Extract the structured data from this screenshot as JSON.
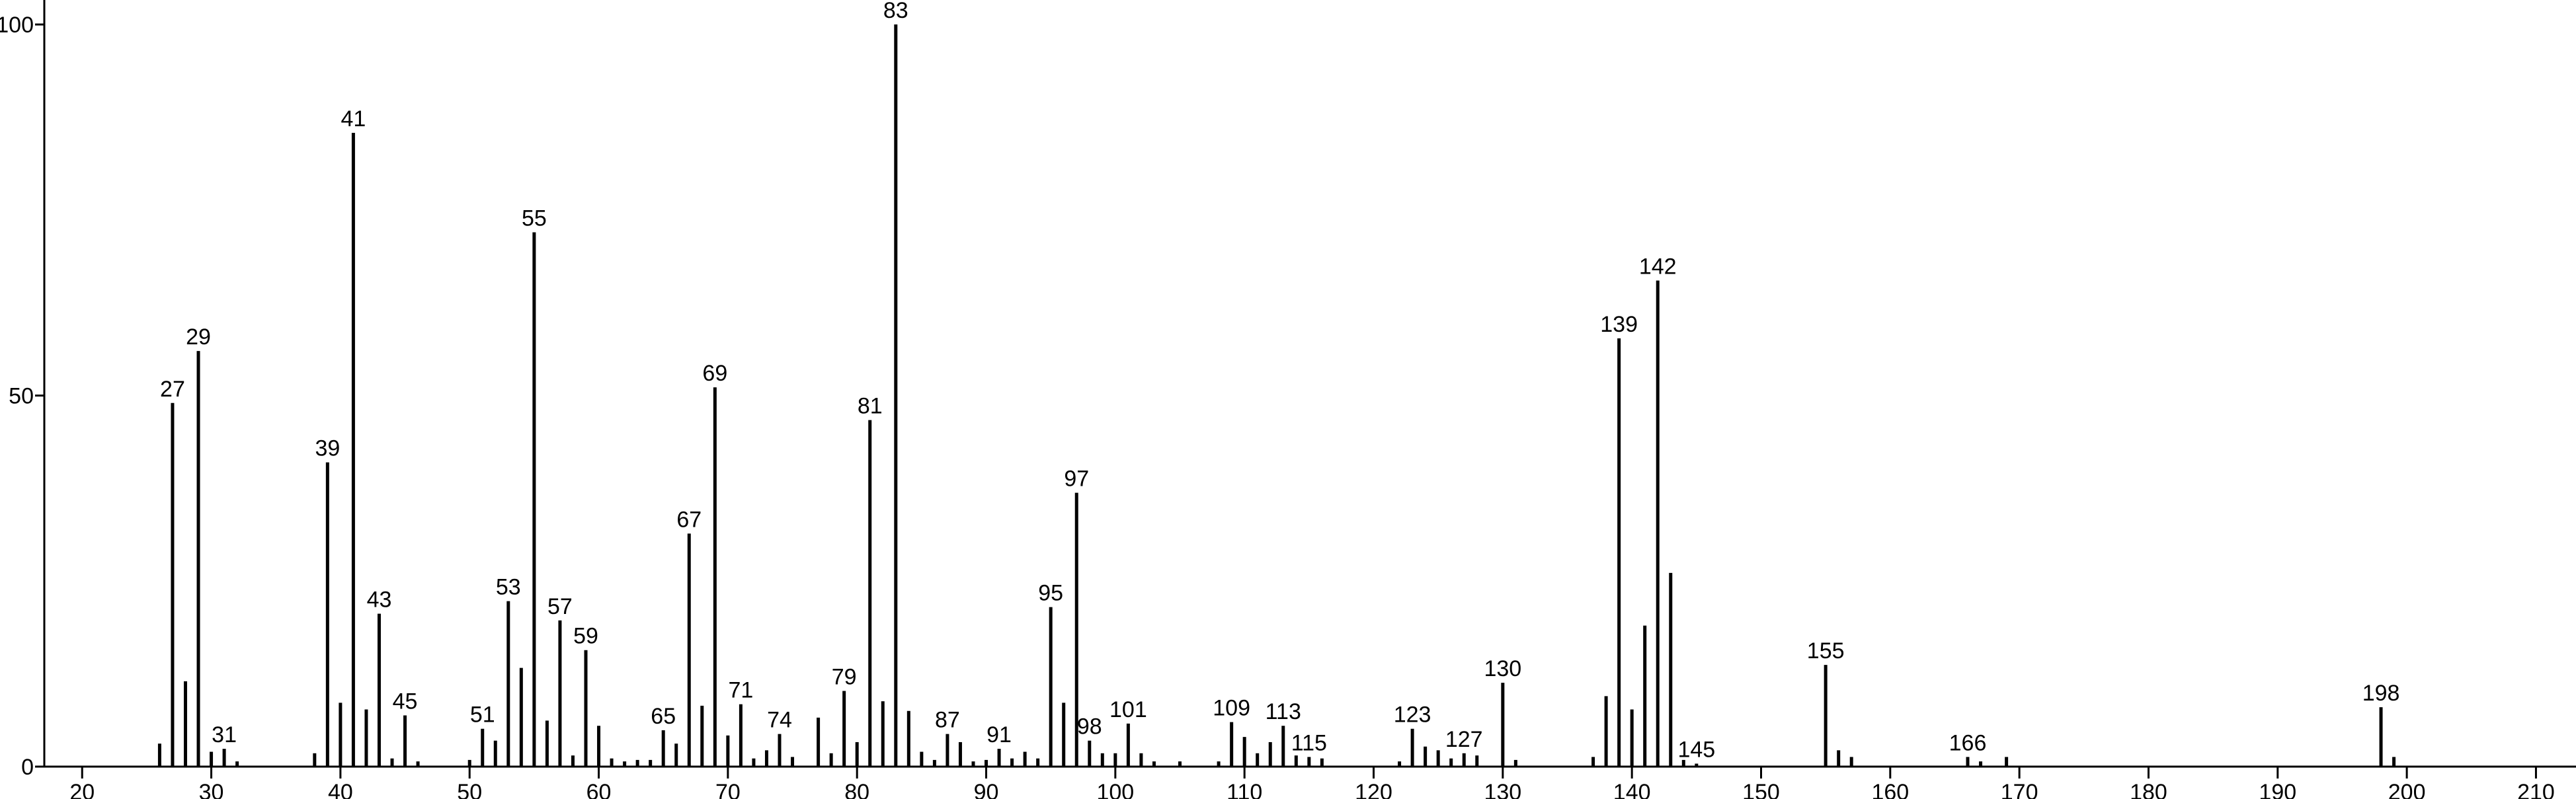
{
  "chart_data": {
    "type": "stem",
    "peaks": [
      {
        "x": 26,
        "y": 3.1
      },
      {
        "x": 27,
        "y": 49,
        "label": "27"
      },
      {
        "x": 28,
        "y": 11.5
      },
      {
        "x": 29,
        "y": 56,
        "label": "29"
      },
      {
        "x": 30,
        "y": 2
      },
      {
        "x": 31,
        "y": 2.4,
        "label": "31"
      },
      {
        "x": 32,
        "y": 0.7
      },
      {
        "x": 38,
        "y": 1.8
      },
      {
        "x": 39,
        "y": 41,
        "label": "39"
      },
      {
        "x": 40,
        "y": 8.6
      },
      {
        "x": 41,
        "y": 85.4,
        "label": "41"
      },
      {
        "x": 42,
        "y": 7.7
      },
      {
        "x": 43,
        "y": 20.6,
        "label": "43"
      },
      {
        "x": 44,
        "y": 1.1
      },
      {
        "x": 45,
        "y": 6.9,
        "label": "45"
      },
      {
        "x": 46,
        "y": 0.7
      },
      {
        "x": 50,
        "y": 0.9
      },
      {
        "x": 51,
        "y": 5.1,
        "label": "51"
      },
      {
        "x": 52,
        "y": 3.5
      },
      {
        "x": 53,
        "y": 22.3,
        "label": "53"
      },
      {
        "x": 54,
        "y": 13.3
      },
      {
        "x": 55,
        "y": 72,
        "label": "55"
      },
      {
        "x": 56,
        "y": 6.2
      },
      {
        "x": 57,
        "y": 19.7,
        "label": "57"
      },
      {
        "x": 58,
        "y": 1.5
      },
      {
        "x": 59,
        "y": 15.7,
        "label": "59"
      },
      {
        "x": 60,
        "y": 5.5
      },
      {
        "x": 61,
        "y": 1.1
      },
      {
        "x": 62,
        "y": 0.7
      },
      {
        "x": 63,
        "y": 0.9
      },
      {
        "x": 64,
        "y": 0.9
      },
      {
        "x": 65,
        "y": 4.9,
        "label": "65"
      },
      {
        "x": 66,
        "y": 3.1
      },
      {
        "x": 67,
        "y": 31.4,
        "label": "67"
      },
      {
        "x": 68,
        "y": 8.2
      },
      {
        "x": 69,
        "y": 51.1,
        "label": "69"
      },
      {
        "x": 70,
        "y": 4.2
      },
      {
        "x": 71,
        "y": 8.4,
        "label": "71"
      },
      {
        "x": 72,
        "y": 1.1
      },
      {
        "x": 73,
        "y": 2.2
      },
      {
        "x": 74,
        "y": 4.4,
        "label": "74"
      },
      {
        "x": 75,
        "y": 1.3
      },
      {
        "x": 77,
        "y": 6.6
      },
      {
        "x": 78,
        "y": 1.8
      },
      {
        "x": 79,
        "y": 10.2,
        "label": "79"
      },
      {
        "x": 80,
        "y": 3.3
      },
      {
        "x": 81,
        "y": 46.7,
        "label": "81"
      },
      {
        "x": 82,
        "y": 8.8
      },
      {
        "x": 83,
        "y": 100,
        "label": "83"
      },
      {
        "x": 84,
        "y": 7.5
      },
      {
        "x": 85,
        "y": 2
      },
      {
        "x": 86,
        "y": 0.9
      },
      {
        "x": 87,
        "y": 4.4,
        "label": "87"
      },
      {
        "x": 88,
        "y": 3.3
      },
      {
        "x": 89,
        "y": 0.7
      },
      {
        "x": 90,
        "y": 0.9
      },
      {
        "x": 91,
        "y": 2.4,
        "label": "91"
      },
      {
        "x": 92,
        "y": 1.1
      },
      {
        "x": 93,
        "y": 2
      },
      {
        "x": 94,
        "y": 1.1
      },
      {
        "x": 95,
        "y": 21.5,
        "label": "95"
      },
      {
        "x": 96,
        "y": 8.6
      },
      {
        "x": 97,
        "y": 36.9,
        "label": "97"
      },
      {
        "x": 98,
        "y": 3.5,
        "label": "98"
      },
      {
        "x": 99,
        "y": 1.8
      },
      {
        "x": 100,
        "y": 1.8
      },
      {
        "x": 101,
        "y": 5.8,
        "label": "101"
      },
      {
        "x": 102,
        "y": 1.8
      },
      {
        "x": 103,
        "y": 0.7
      },
      {
        "x": 105,
        "y": 0.7
      },
      {
        "x": 108,
        "y": 0.7
      },
      {
        "x": 109,
        "y": 6,
        "label": "109"
      },
      {
        "x": 110,
        "y": 4
      },
      {
        "x": 111,
        "y": 1.8
      },
      {
        "x": 112,
        "y": 3.3
      },
      {
        "x": 113,
        "y": 5.5,
        "label": "113"
      },
      {
        "x": 114,
        "y": 1.5
      },
      {
        "x": 115,
        "y": 1.3,
        "label": "115"
      },
      {
        "x": 116,
        "y": 1.1
      },
      {
        "x": 122,
        "y": 0.7
      },
      {
        "x": 123,
        "y": 5.1,
        "label": "123"
      },
      {
        "x": 124,
        "y": 2.7
      },
      {
        "x": 125,
        "y": 2.2
      },
      {
        "x": 126,
        "y": 1.1
      },
      {
        "x": 127,
        "y": 1.8,
        "label": "127"
      },
      {
        "x": 128,
        "y": 1.5
      },
      {
        "x": 130,
        "y": 11.3,
        "label": "130"
      },
      {
        "x": 131,
        "y": 0.9
      },
      {
        "x": 137,
        "y": 1.3
      },
      {
        "x": 138,
        "y": 9.5
      },
      {
        "x": 139,
        "y": 57.7,
        "label": "139"
      },
      {
        "x": 140,
        "y": 7.7
      },
      {
        "x": 141,
        "y": 19
      },
      {
        "x": 142,
        "y": 65.5,
        "label": "142"
      },
      {
        "x": 143,
        "y": 26.1
      },
      {
        "x": 144,
        "y": 0.9
      },
      {
        "x": 145,
        "y": 0.4,
        "label": "145"
      },
      {
        "x": 155,
        "y": 13.7,
        "label": "155"
      },
      {
        "x": 156,
        "y": 2.2
      },
      {
        "x": 157,
        "y": 1.3
      },
      {
        "x": 166,
        "y": 1.3,
        "label": "166"
      },
      {
        "x": 167,
        "y": 0.7
      },
      {
        "x": 169,
        "y": 1.3
      },
      {
        "x": 198,
        "y": 8,
        "label": "198"
      },
      {
        "x": 199,
        "y": 1.3
      }
    ],
    "color": "#000000",
    "xlim": [
      17.07,
      213.1
    ],
    "xticks": [
      20,
      30,
      40,
      50,
      60,
      70,
      80,
      90,
      100,
      110,
      120,
      130,
      140,
      150,
      160,
      170,
      180,
      190,
      200,
      210
    ],
    "ylim": [
      0,
      103.3
    ],
    "yticks": [
      0,
      50,
      100
    ]
  }
}
